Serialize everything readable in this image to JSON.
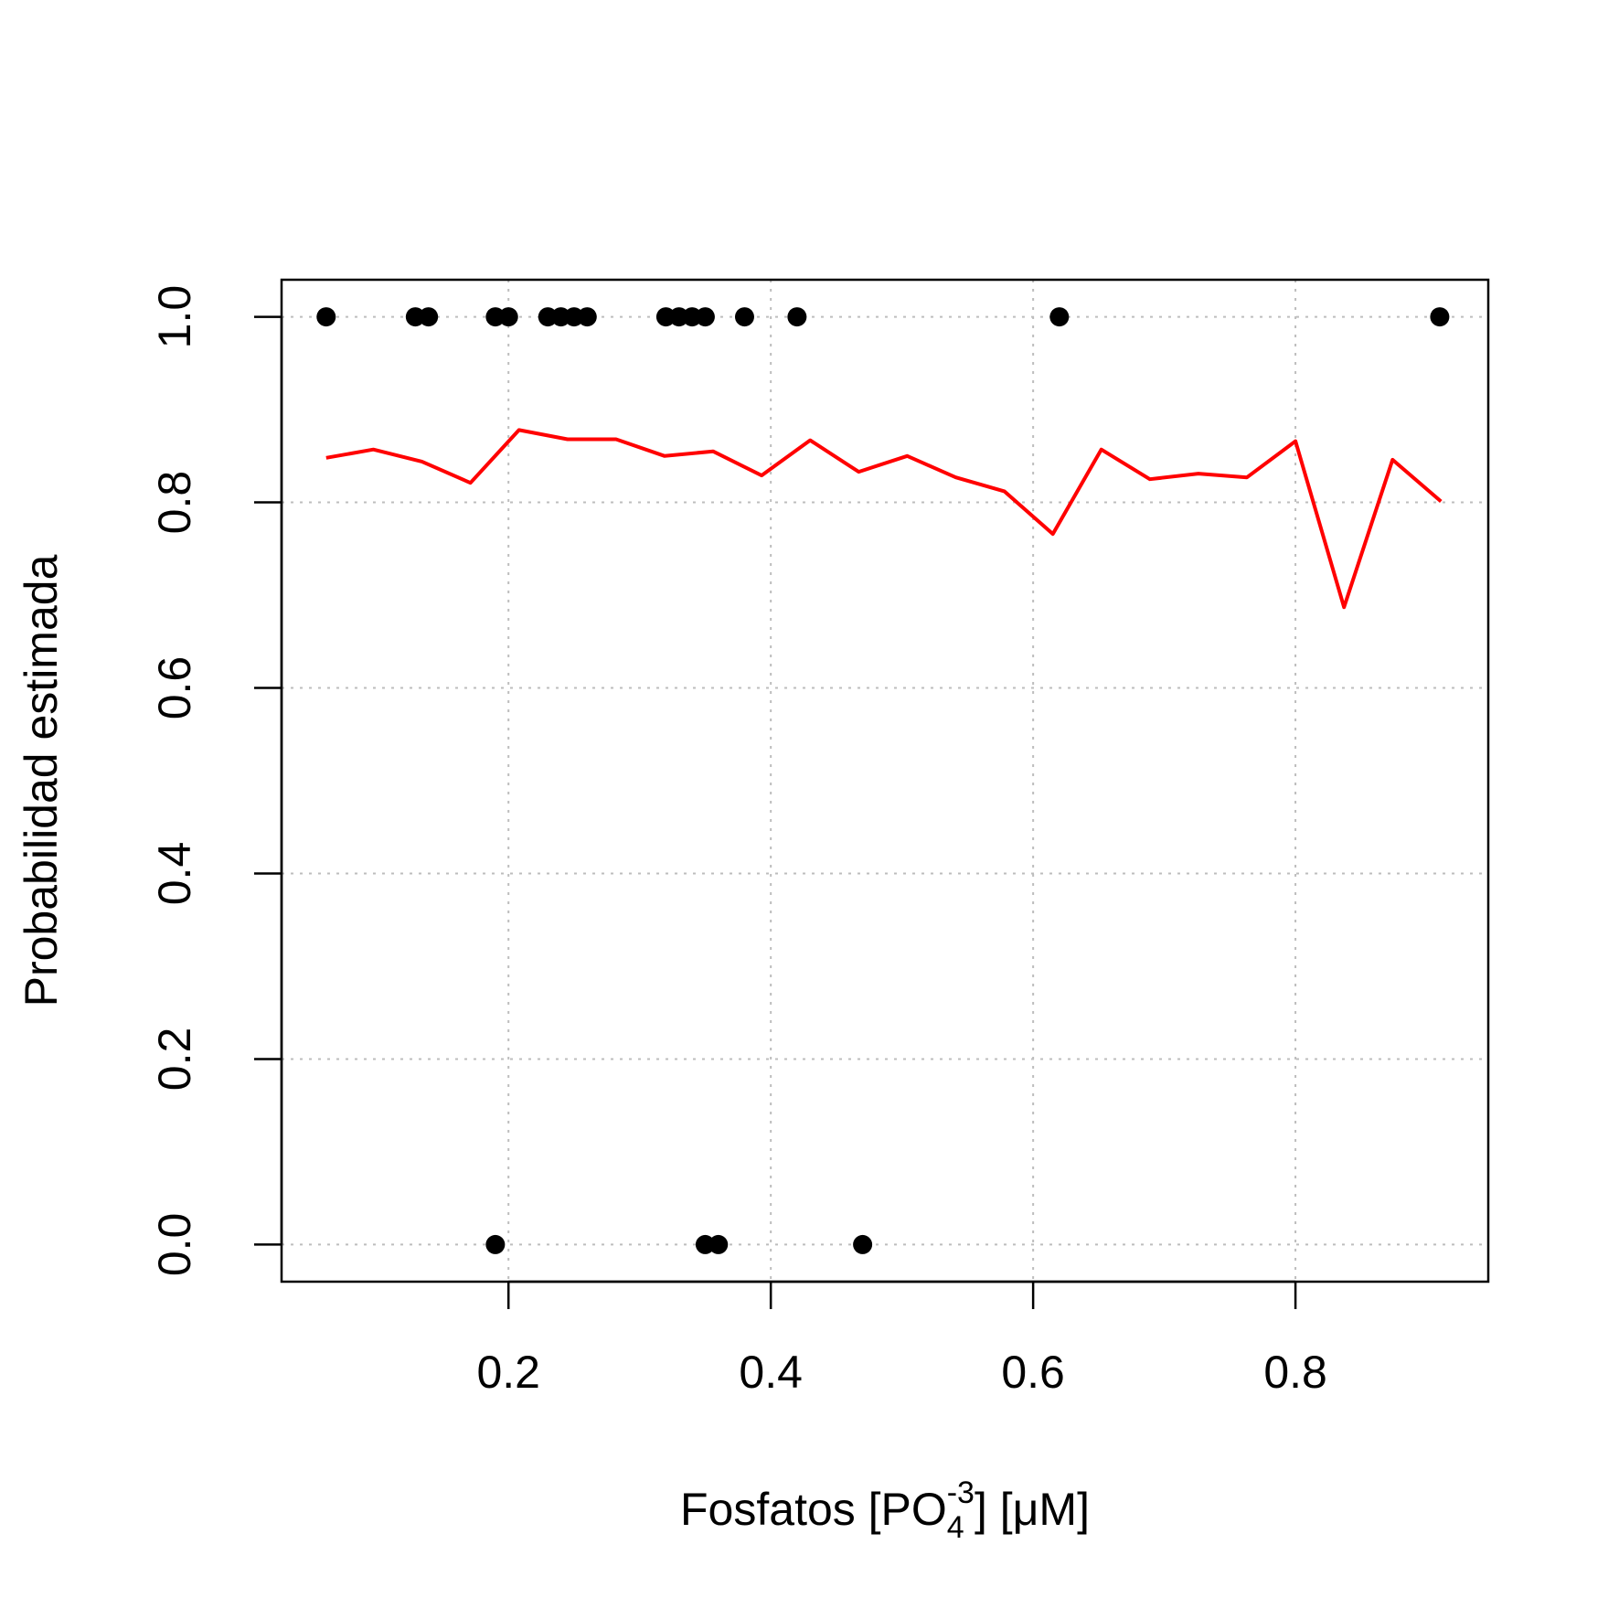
{
  "chart_data": {
    "type": "scatter",
    "title": "",
    "xlabel": {
      "prefix": "Fosfatos [PO",
      "subscript": "4",
      "superscript": "-3",
      "suffix": "] [μM]"
    },
    "ylabel": "Probabilidad estimada",
    "xlim": [
      0.027,
      0.947
    ],
    "ylim": [
      -0.04,
      1.04
    ],
    "x_ticks": [
      0.2,
      0.4,
      0.6,
      0.8
    ],
    "x_tick_labels": [
      "0.2",
      "0.4",
      "0.6",
      "0.8"
    ],
    "y_ticks": [
      0.0,
      0.2,
      0.4,
      0.6,
      0.8,
      1.0
    ],
    "y_tick_labels": [
      "0.0",
      "0.2",
      "0.4",
      "0.6",
      "0.8",
      "1.0"
    ],
    "grid": true,
    "series": [
      {
        "kind": "points",
        "color": "#000000",
        "points": [
          {
            "x": 0.061,
            "y": 1
          },
          {
            "x": 0.129,
            "y": 1
          },
          {
            "x": 0.139,
            "y": 1
          },
          {
            "x": 0.19,
            "y": 1
          },
          {
            "x": 0.2,
            "y": 1
          },
          {
            "x": 0.23,
            "y": 1
          },
          {
            "x": 0.24,
            "y": 1
          },
          {
            "x": 0.25,
            "y": 1
          },
          {
            "x": 0.26,
            "y": 1
          },
          {
            "x": 0.32,
            "y": 1
          },
          {
            "x": 0.33,
            "y": 1
          },
          {
            "x": 0.34,
            "y": 1
          },
          {
            "x": 0.35,
            "y": 1
          },
          {
            "x": 0.38,
            "y": 1
          },
          {
            "x": 0.42,
            "y": 1
          },
          {
            "x": 0.62,
            "y": 1
          },
          {
            "x": 0.91,
            "y": 1
          },
          {
            "x": 0.19,
            "y": 0
          },
          {
            "x": 0.35,
            "y": 0
          },
          {
            "x": 0.36,
            "y": 0
          },
          {
            "x": 0.47,
            "y": 0
          }
        ]
      },
      {
        "kind": "line",
        "color": "#ff0000",
        "points": [
          {
            "x": 0.061,
            "y": 0.848
          },
          {
            "x": 0.097,
            "y": 0.857
          },
          {
            "x": 0.134,
            "y": 0.844
          },
          {
            "x": 0.171,
            "y": 0.821
          },
          {
            "x": 0.208,
            "y": 0.878
          },
          {
            "x": 0.245,
            "y": 0.868
          },
          {
            "x": 0.282,
            "y": 0.868
          },
          {
            "x": 0.319,
            "y": 0.85
          },
          {
            "x": 0.356,
            "y": 0.855
          },
          {
            "x": 0.393,
            "y": 0.829
          },
          {
            "x": 0.43,
            "y": 0.867
          },
          {
            "x": 0.467,
            "y": 0.833
          },
          {
            "x": 0.504,
            "y": 0.85
          },
          {
            "x": 0.541,
            "y": 0.827
          },
          {
            "x": 0.578,
            "y": 0.812
          },
          {
            "x": 0.615,
            "y": 0.766
          },
          {
            "x": 0.652,
            "y": 0.857
          },
          {
            "x": 0.689,
            "y": 0.825
          },
          {
            "x": 0.726,
            "y": 0.831
          },
          {
            "x": 0.763,
            "y": 0.827
          },
          {
            "x": 0.8,
            "y": 0.866
          },
          {
            "x": 0.837,
            "y": 0.687
          },
          {
            "x": 0.874,
            "y": 0.846
          },
          {
            "x": 0.911,
            "y": 0.801
          }
        ]
      }
    ]
  }
}
